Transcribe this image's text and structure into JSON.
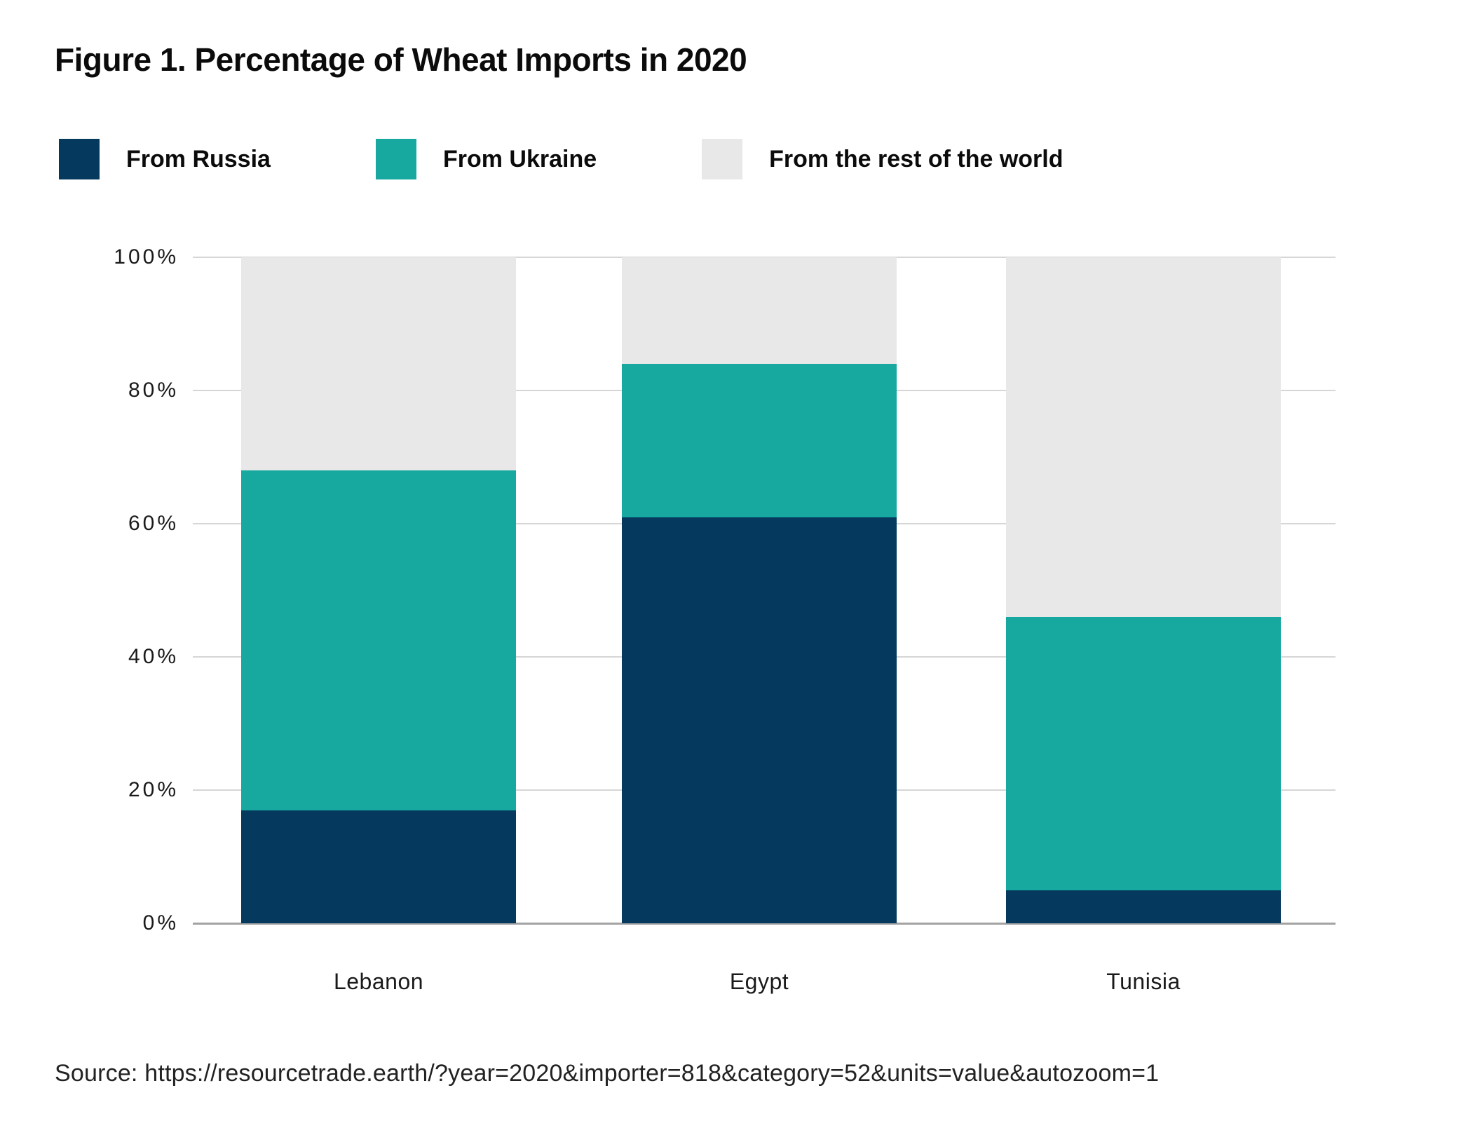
{
  "title": "Figure 1. Percentage of Wheat Imports in 2020",
  "source": "Source: https://resourcetrade.earth/?year=2020&importer=818&category=52&units=value&autozoom=1",
  "colors": {
    "russia": "#05395d",
    "ukraine": "#17a8a0",
    "rest": "#e8e8e8",
    "gridline": "#d6d6d6",
    "axis": "#a3a3a3",
    "text": "#1a1a1a"
  },
  "chart_data": {
    "type": "bar",
    "stacked": true,
    "title": "Figure 1. Percentage of Wheat Imports in 2020",
    "categories": [
      "Lebanon",
      "Egypt",
      "Tunisia"
    ],
    "series": [
      {
        "name": "From Russia",
        "color_key": "russia",
        "values": [
          17,
          61,
          5
        ]
      },
      {
        "name": "From Ukraine",
        "color_key": "ukraine",
        "values": [
          51,
          23,
          41
        ]
      },
      {
        "name": "From the rest of the world",
        "color_key": "rest",
        "values": [
          32,
          16,
          54
        ]
      }
    ],
    "ylim": [
      0,
      100
    ],
    "yticks": [
      0,
      20,
      40,
      60,
      80,
      100
    ],
    "ytick_format": "{v}%",
    "xlabel": "",
    "ylabel": "",
    "grid": true,
    "legend_position": "top"
  }
}
